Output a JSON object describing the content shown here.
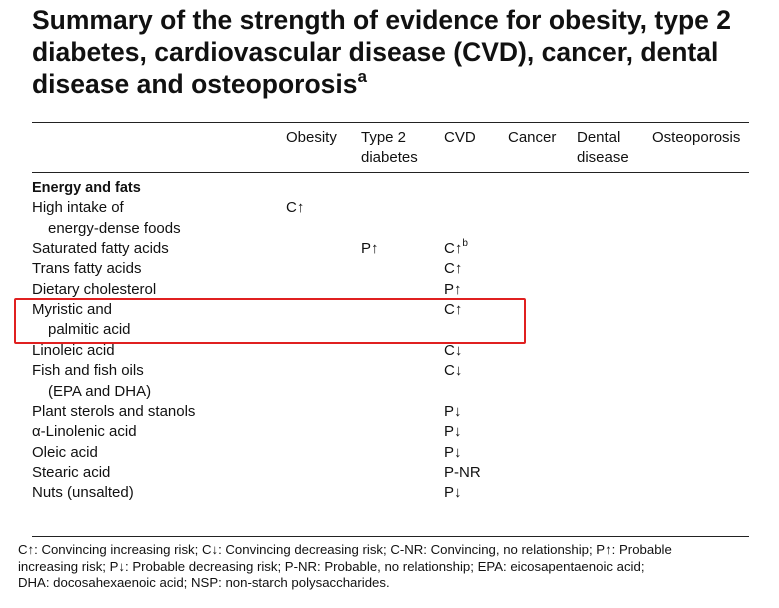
{
  "title": "Summary of the strength of evidence for obesity, type 2 diabetes, cardiovascular disease (CVD), cancer, dental disease and osteoporosis",
  "title_note": "a",
  "table": {
    "columns": [
      {
        "key": "obesity",
        "lines": [
          "Obesity"
        ]
      },
      {
        "key": "type2",
        "lines": [
          "Type 2",
          "diabetes"
        ]
      },
      {
        "key": "cvd",
        "lines": [
          "CVD"
        ]
      },
      {
        "key": "cancer",
        "lines": [
          "Cancer"
        ]
      },
      {
        "key": "dental",
        "lines": [
          "Dental",
          "disease"
        ]
      },
      {
        "key": "osteo",
        "lines": [
          "Osteoporosis"
        ]
      }
    ],
    "section": "Energy and fats",
    "rows": [
      {
        "label": [
          "High intake of",
          "energy-dense foods"
        ],
        "obesity": "C↑"
      },
      {
        "label": [
          "Saturated fatty acids"
        ],
        "type2": "P↑",
        "cvd": "C↑",
        "cvd_note": "b"
      },
      {
        "label": [
          "Trans fatty acids"
        ],
        "cvd": "C↑"
      },
      {
        "label": [
          "Dietary cholesterol"
        ],
        "cvd": "P↑"
      },
      {
        "label": [
          "Myristic and",
          "palmitic acid"
        ],
        "cvd": "C↑"
      },
      {
        "label": [
          "Linoleic acid"
        ],
        "cvd": "C↓"
      },
      {
        "label": [
          "Fish and fish oils",
          "(EPA and DHA)"
        ],
        "cvd": "C↓"
      },
      {
        "label": [
          "Plant sterols and stanols"
        ],
        "cvd": "P↓"
      },
      {
        "label": [
          "α-Linolenic acid"
        ],
        "cvd": "P↓"
      },
      {
        "label": [
          "Oleic acid"
        ],
        "cvd": "P↓"
      },
      {
        "label": [
          "Stearic acid"
        ],
        "cvd": "P-NR"
      },
      {
        "label": [
          "Nuts (unsalted)"
        ],
        "cvd": "P↓"
      }
    ]
  },
  "footnote": [
    "C↑: Convincing increasing risk; C↓: Convincing decreasing risk; C-NR: Convincing, no relationship; P↑: Probable",
    "increasing risk; P↓: Probable decreasing risk; P-NR: Probable, no relationship; EPA: eicosapentaenoic acid;",
    "DHA: docosahexaenoic acid; NSP: non-starch polysaccharides."
  ]
}
